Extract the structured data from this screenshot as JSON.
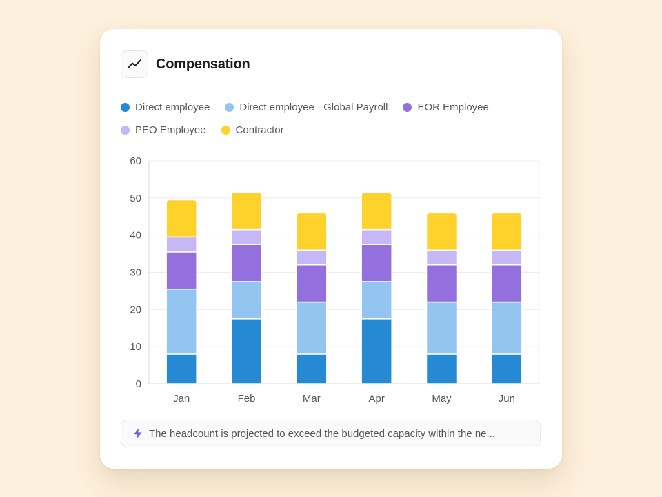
{
  "card": {
    "title": "Compensation",
    "title_icon": "trend-line-icon",
    "insight": {
      "icon": "lightning-icon",
      "text": "The headcount is projected to exceed the budgeted capacity within the ne..."
    }
  },
  "colors": {
    "direct": "#2589d4",
    "global_payroll": "#93c5f0",
    "eor": "#9370de",
    "peo": "#c6b8f6",
    "contractor": "#fed22b",
    "insight_icon": "#7c5ad4"
  },
  "chart_data": {
    "type": "bar",
    "stacked": true,
    "title": "",
    "xlabel": "",
    "ylabel": "",
    "ylim": [
      0,
      60
    ],
    "yticks": [
      0,
      10,
      20,
      30,
      40,
      50,
      60
    ],
    "grid": true,
    "legend_position": "top",
    "categories": [
      "Jan",
      "Feb",
      "Mar",
      "Apr",
      "May",
      "Jun"
    ],
    "series": [
      {
        "name": "Direct employee",
        "color": "#2589d4",
        "values": [
          8,
          17.5,
          8,
          17.5,
          8,
          8
        ]
      },
      {
        "name": "Direct employee · Global Payroll",
        "color": "#93c5f0",
        "values": [
          17.5,
          10,
          14,
          10,
          14,
          14
        ]
      },
      {
        "name": "EOR Employee",
        "color": "#9370de",
        "values": [
          10,
          10,
          10,
          10,
          10,
          10
        ]
      },
      {
        "name": "PEO Employee",
        "color": "#c6b8f6",
        "values": [
          4,
          4,
          4,
          4,
          4,
          4
        ]
      },
      {
        "name": "Contractor",
        "color": "#fed22b",
        "values": [
          10,
          10,
          10,
          10,
          10,
          10
        ]
      }
    ]
  }
}
